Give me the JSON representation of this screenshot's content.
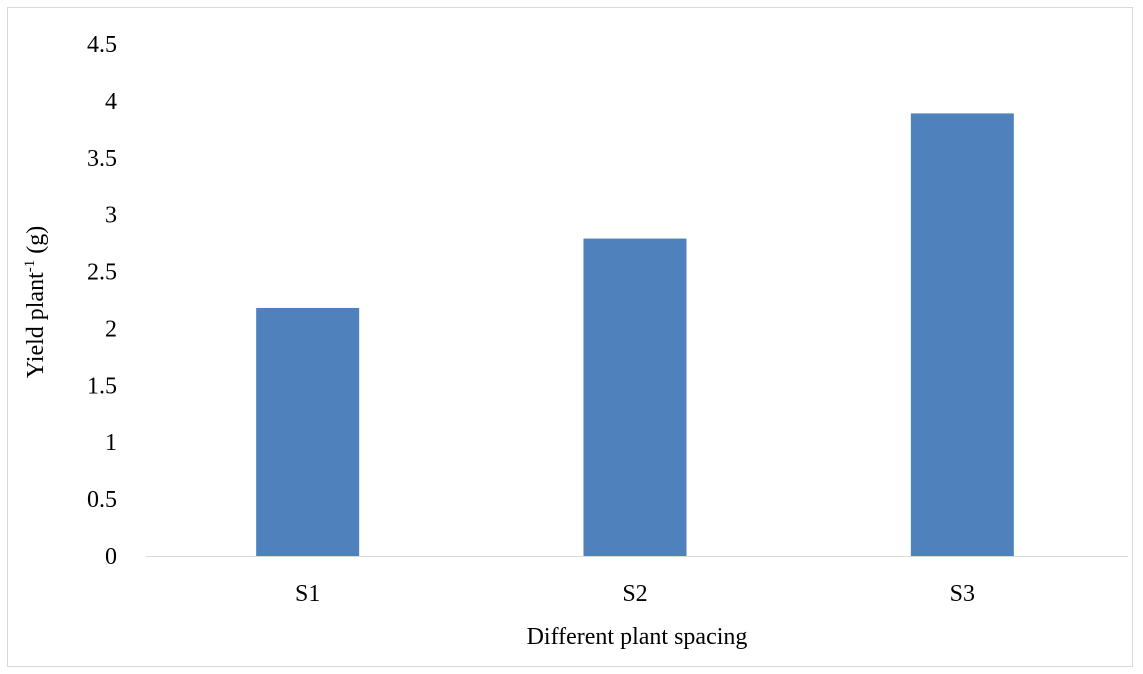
{
  "chart_data": {
    "type": "bar",
    "categories": [
      "S1",
      "S2",
      "S3"
    ],
    "values": [
      2.18,
      2.79,
      3.89
    ],
    "xlabel": "Different plant spacing",
    "ylabel": {
      "main": "Yield plant",
      "superscript": "-1",
      "unit": " (g)"
    },
    "ylim": [
      0,
      4.5
    ],
    "yticks": [
      "0",
      "0.5",
      "1",
      "1.5",
      "2",
      "2.5",
      "3",
      "3.5",
      "4",
      "4.5"
    ],
    "grid": false,
    "legend": "none",
    "bar_color": "#4f81bd",
    "axis_color": "#d9d9d9"
  }
}
